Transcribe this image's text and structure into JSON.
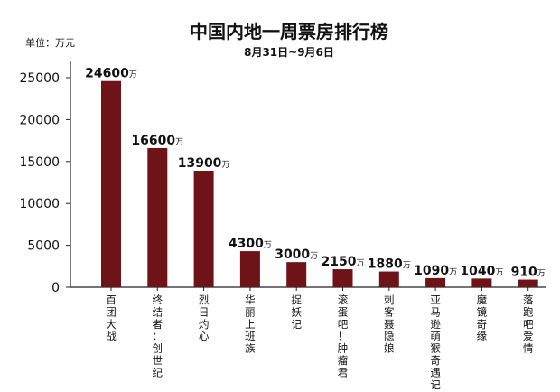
{
  "chart_data": {
    "type": "bar",
    "title": "中国内地一周票房排行榜",
    "subtitle": "8月31日~9月6日",
    "unit_label": "单位：万元",
    "value_suffix": "万",
    "ylim": [
      0,
      25000
    ],
    "yticks": [
      0,
      5000,
      10000,
      15000,
      20000,
      25000
    ],
    "categories": [
      "百团大战",
      "终结者：创世纪",
      "烈日灼心",
      "华丽上班族",
      "捉妖记",
      "滚蛋吧！肿瘤君",
      "刺客聂隐娘",
      "亚马逊萌猴奇遇记",
      "魔镜奇缘",
      "落跑吧爱情"
    ],
    "values": [
      24600,
      16600,
      13900,
      4300,
      3000,
      2150,
      1880,
      1090,
      1040,
      910
    ],
    "colors": {
      "bar": "#6e1419",
      "axis": "#222222",
      "text": "#111111"
    }
  }
}
